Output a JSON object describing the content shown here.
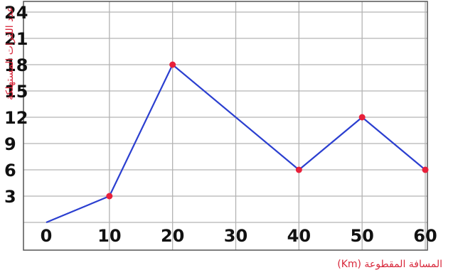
{
  "chart_data": {
    "type": "line",
    "title": "",
    "xlabel": "المسافة المقطوعة (Km)",
    "ylabel": "عدد اللترات المستهلكة",
    "x": [
      0,
      10,
      20,
      40,
      50,
      60
    ],
    "y": [
      0,
      3,
      18,
      6,
      12,
      6
    ],
    "xticks": [
      0,
      10,
      20,
      30,
      40,
      50,
      60
    ],
    "yticks": [
      3,
      6,
      9,
      12,
      15,
      18,
      21,
      24
    ],
    "xlim": [
      0,
      60
    ],
    "ylim": [
      0,
      24
    ],
    "grid": true,
    "colors": {
      "line": "#2b3fd0",
      "marker": "#e8203a",
      "grid": "#b3b3b3",
      "labels": "#d8283b"
    }
  }
}
